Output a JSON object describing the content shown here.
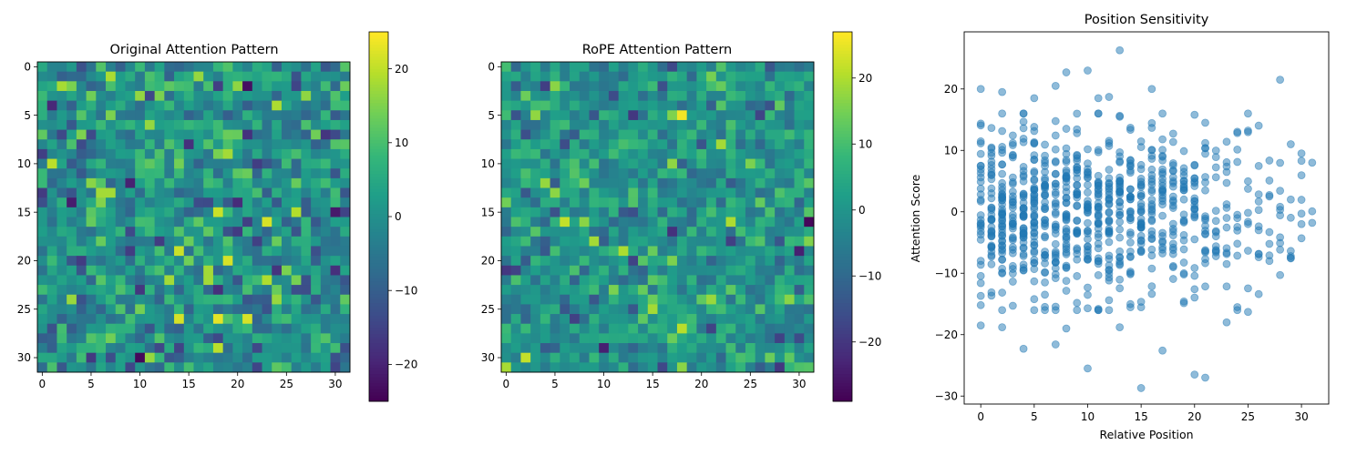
{
  "chart_data": [
    {
      "type": "heatmap",
      "title": "Original Attention Pattern",
      "xlabel": "",
      "ylabel": "",
      "size": 32,
      "xticks": [
        0,
        5,
        10,
        15,
        20,
        25,
        30
      ],
      "yticks": [
        0,
        5,
        10,
        15,
        20,
        25,
        30
      ],
      "colormap": "viridis",
      "vmin": -25,
      "vmax": 25,
      "colorbar_ticks": [
        -20,
        -10,
        0,
        10,
        20
      ],
      "seed": 17,
      "noise_std": 7,
      "highlights": [
        {
          "row": 1,
          "col": 16,
          "value": 17
        },
        {
          "row": 2,
          "col": 21,
          "value": -23
        },
        {
          "row": 5,
          "col": 7,
          "value": 15
        },
        {
          "row": 7,
          "col": 28,
          "value": 14
        },
        {
          "row": 9,
          "col": 19,
          "value": 18
        },
        {
          "row": 12,
          "col": 5,
          "value": 16
        },
        {
          "row": 13,
          "col": 6,
          "value": 18
        },
        {
          "row": 13,
          "col": 7,
          "value": 18
        },
        {
          "row": 15,
          "col": 18,
          "value": 21
        },
        {
          "row": 16,
          "col": 23,
          "value": 22
        },
        {
          "row": 15,
          "col": 31,
          "value": -15
        },
        {
          "row": 19,
          "col": 14,
          "value": 21
        },
        {
          "row": 20,
          "col": 19,
          "value": 22
        },
        {
          "row": 21,
          "col": 17,
          "value": 18
        },
        {
          "row": 22,
          "col": 13,
          "value": 18
        },
        {
          "row": 22,
          "col": 17,
          "value": 18
        },
        {
          "row": 22,
          "col": 23,
          "value": 19
        },
        {
          "row": 23,
          "col": 10,
          "value": -17
        },
        {
          "row": 26,
          "col": 14,
          "value": 22
        },
        {
          "row": 26,
          "col": 18,
          "value": 23
        },
        {
          "row": 26,
          "col": 21,
          "value": 22
        },
        {
          "row": 30,
          "col": 10,
          "value": -24
        },
        {
          "row": 30,
          "col": 11,
          "value": 17
        }
      ]
    },
    {
      "type": "heatmap",
      "title": "RoPE Attention Pattern",
      "xlabel": "",
      "ylabel": "",
      "size": 32,
      "xticks": [
        0,
        5,
        10,
        15,
        20,
        25,
        30
      ],
      "yticks": [
        0,
        5,
        10,
        15,
        20,
        25,
        30
      ],
      "colormap": "viridis",
      "vmin": -29,
      "vmax": 27,
      "colorbar_ticks": [
        -20,
        -10,
        0,
        10,
        20
      ],
      "seed": 53,
      "noise_std": 7,
      "highlights": [
        {
          "row": 2,
          "col": 5,
          "value": 17
        },
        {
          "row": 5,
          "col": 18,
          "value": 26
        },
        {
          "row": 5,
          "col": 17,
          "value": 16
        },
        {
          "row": 12,
          "col": 4,
          "value": 18
        },
        {
          "row": 16,
          "col": 6,
          "value": 22
        },
        {
          "row": 16,
          "col": 8,
          "value": 17
        },
        {
          "row": 16,
          "col": 23,
          "value": 20
        },
        {
          "row": 16,
          "col": 31,
          "value": -28
        },
        {
          "row": 19,
          "col": 12,
          "value": 20
        },
        {
          "row": 19,
          "col": 30,
          "value": -24
        },
        {
          "row": 21,
          "col": 0,
          "value": -20
        },
        {
          "row": 21,
          "col": 1,
          "value": -18
        },
        {
          "row": 27,
          "col": 18,
          "value": 21
        },
        {
          "row": 28,
          "col": 28,
          "value": -18
        },
        {
          "row": 29,
          "col": 10,
          "value": -24
        },
        {
          "row": 30,
          "col": 2,
          "value": 22
        }
      ]
    },
    {
      "type": "scatter",
      "title": "Position Sensitivity",
      "xlabel": "Relative Position",
      "ylabel": "Attention Score",
      "xlim": [
        -1.55,
        32.55
      ],
      "ylim": [
        -31.3,
        29.3
      ],
      "xticks": [
        0,
        5,
        10,
        15,
        20,
        25,
        30
      ],
      "yticks": [
        -30,
        -20,
        -10,
        0,
        10,
        20
      ],
      "color": "#1f77b4",
      "alpha": 0.5,
      "seed": 101,
      "points_per_position": [
        30,
        40,
        50,
        35,
        45,
        48,
        40,
        35,
        42,
        38,
        36,
        40,
        38,
        36,
        34,
        35,
        30,
        28,
        26,
        24,
        22,
        20,
        14,
        14,
        12,
        10,
        10,
        8,
        8,
        4,
        4,
        1
      ],
      "extremes": [
        {
          "x": 0,
          "y": 20
        },
        {
          "x": 0,
          "y": -18.5
        },
        {
          "x": 2,
          "y": 19.5
        },
        {
          "x": 2,
          "y": -18.8
        },
        {
          "x": 4,
          "y": -22.3
        },
        {
          "x": 5,
          "y": 18.5
        },
        {
          "x": 7,
          "y": 20.5
        },
        {
          "x": 7,
          "y": -21.6
        },
        {
          "x": 8,
          "y": 22.7
        },
        {
          "x": 8,
          "y": -19
        },
        {
          "x": 10,
          "y": 23
        },
        {
          "x": 10,
          "y": -25.5
        },
        {
          "x": 11,
          "y": 18.5
        },
        {
          "x": 12,
          "y": 18.7
        },
        {
          "x": 13,
          "y": 26.3
        },
        {
          "x": 13,
          "y": -18.8
        },
        {
          "x": 15,
          "y": -28.7
        },
        {
          "x": 16,
          "y": 20
        },
        {
          "x": 17,
          "y": -22.6
        },
        {
          "x": 20,
          "y": 15.8
        },
        {
          "x": 20,
          "y": -26.5
        },
        {
          "x": 21,
          "y": -27
        },
        {
          "x": 21,
          "y": 14.5
        },
        {
          "x": 23,
          "y": -18
        },
        {
          "x": 25,
          "y": -16.3
        },
        {
          "x": 26,
          "y": -13.4
        },
        {
          "x": 28,
          "y": 21.5
        },
        {
          "x": 28,
          "y": -10.3
        },
        {
          "x": 29,
          "y": 11
        },
        {
          "x": 29,
          "y": -7.5
        },
        {
          "x": 30,
          "y": 9.5
        },
        {
          "x": 31,
          "y": 8
        },
        {
          "x": 31,
          "y": -1.8
        },
        {
          "x": 30,
          "y": -2
        },
        {
          "x": 29,
          "y": 2
        },
        {
          "x": 30,
          "y": 8.3
        }
      ]
    }
  ]
}
